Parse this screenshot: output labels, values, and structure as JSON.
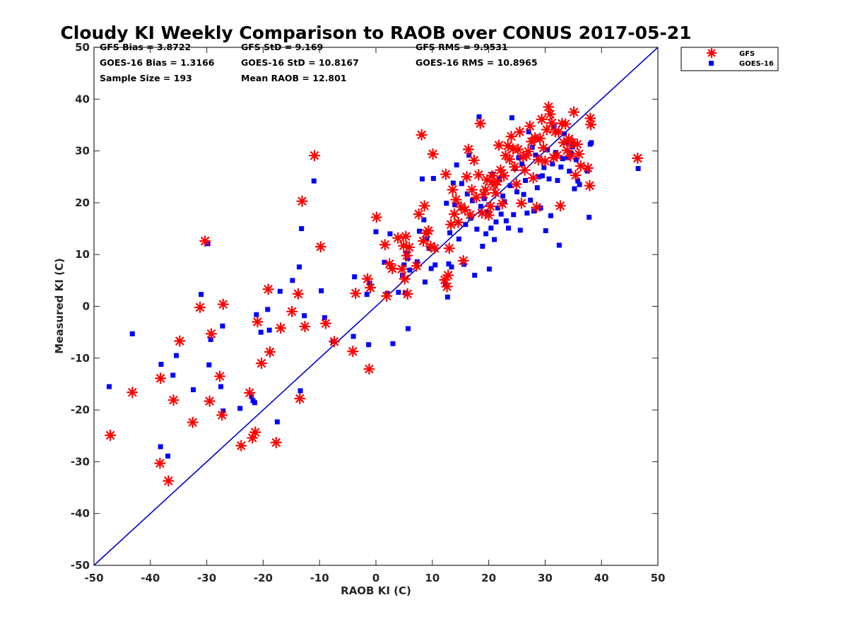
{
  "chart_data": {
    "type": "scatter",
    "title": "Cloudy KI Weekly Comparison to RAOB over CONUS 2017-05-21",
    "xlabel": "RAOB KI (C)",
    "ylabel": "Measured KI (C)",
    "xlim": [
      -50,
      50
    ],
    "ylim": [
      -50,
      50
    ],
    "xticks": [
      "-50",
      "-40",
      "-30",
      "-20",
      "-10",
      "0",
      "10",
      "20",
      "30",
      "40",
      "50"
    ],
    "yticks": [
      "50",
      "40",
      "30",
      "20",
      "10",
      "0",
      "-10",
      "-20",
      "-30",
      "-40",
      "-50"
    ],
    "grid": false,
    "legend_position": "outside-top-right",
    "reference_line": {
      "x": [
        -50,
        50
      ],
      "y": [
        -50,
        50
      ],
      "color": "#0000cc"
    },
    "stats": {
      "gfs_bias": "GFS Bias = 3.8722",
      "gfs_std": "GFS StD = 9.169",
      "gfs_rms": "GFS RMS = 9.9531",
      "goes_bias": "GOES-16 Bias = 1.3166",
      "goes_std": "GOES-16 StD = 10.8167",
      "goes_rms": "GOES-16 RMS = 10.8965",
      "sample_size": "Sample Size = 193",
      "mean_raob": "Mean RAOB = 12.801"
    },
    "series": [
      {
        "name": "GFS",
        "marker": "asterisk",
        "color": "#ff0000",
        "x": [
          -47.1,
          -43.2,
          -38.3,
          -38.2,
          -36.8,
          -35.9,
          -34.8,
          -32.5,
          -31.2,
          -30.3,
          -29.5,
          -29.2,
          -27.7,
          -27.3,
          -27.1,
          -23.9,
          -22.4,
          -21.9,
          -21.4,
          -21.0,
          -20.3,
          -19.1,
          -18.8,
          -17.7,
          -16.9,
          -14.9,
          -13.8,
          -13.5,
          -13.1,
          -12.6,
          -10.9,
          -9.8,
          -8.9,
          -7.4,
          -4.1,
          -3.6,
          -1.5,
          -1.2,
          -1.0,
          0.1,
          1.6,
          1.9,
          2.4,
          2.9,
          3.9,
          4.6,
          4.9,
          5.1,
          5.3,
          5.5,
          5.6,
          5.9,
          7.2,
          7.6,
          8.1,
          8.4,
          8.6,
          8.9,
          9.3,
          9.7,
          10.1,
          10.4,
          12.2,
          12.4,
          12.6,
          12.8,
          13.0,
          13.3,
          13.6,
          13.9,
          14.2,
          14.6,
          15.1,
          15.5,
          15.8,
          16.1,
          16.4,
          16.7,
          17.0,
          17.4,
          17.8,
          18.2,
          18.5,
          18.8,
          19.1,
          19.4,
          19.7,
          20.0,
          20.3,
          20.6,
          20.9,
          21.2,
          21.5,
          21.8,
          22.1,
          22.4,
          22.7,
          23.0,
          23.4,
          23.7,
          24.0,
          24.3,
          24.6,
          24.9,
          25.2,
          25.5,
          25.8,
          26.1,
          26.4,
          26.7,
          27.0,
          27.3,
          27.6,
          27.9,
          28.2,
          28.5,
          28.8,
          29.1,
          29.4,
          29.7,
          30.0,
          30.3,
          30.6,
          30.9,
          31.2,
          31.5,
          31.8,
          32.1,
          32.4,
          32.7,
          33.0,
          33.3,
          33.6,
          33.9,
          34.2,
          34.5,
          34.8,
          35.1,
          35.4,
          35.7,
          36.0,
          36.3,
          37.6,
          37.9,
          38.0,
          38.1,
          46.4
        ],
        "y": [
          -24.9,
          -16.6,
          -30.3,
          -13.9,
          -33.7,
          -18.1,
          -6.7,
          -22.4,
          -0.2,
          12.6,
          -18.3,
          -5.3,
          -13.5,
          -21.0,
          0.4,
          -26.9,
          -16.7,
          -25.4,
          -24.3,
          -3.0,
          -11.0,
          3.3,
          -8.8,
          -26.3,
          -4.2,
          -1.0,
          2.4,
          -17.8,
          20.3,
          -3.9,
          29.1,
          11.5,
          -3.3,
          -6.8,
          -8.7,
          2.5,
          5.3,
          -12.1,
          3.6,
          17.2,
          11.9,
          2.0,
          8.2,
          7.3,
          13.2,
          7.2,
          11.7,
          5.3,
          13.5,
          9.8,
          2.4,
          11.4,
          7.8,
          17.8,
          33.1,
          12.6,
          19.4,
          14.1,
          14.6,
          11.6,
          29.4,
          11.2,
          5.1,
          25.5,
          3.8,
          6.0,
          11.2,
          15.8,
          22.5,
          17.8,
          20.6,
          16.2,
          19.2,
          8.8,
          18.6,
          25.0,
          30.3,
          17.7,
          22.5,
          28.2,
          21.0,
          25.4,
          35.3,
          18.0,
          21.6,
          22.5,
          24.4,
          17.6,
          19.3,
          25.2,
          23.5,
          21.9,
          24.1,
          31.1,
          26.3,
          19.8,
          25.2,
          29.1,
          31.0,
          28.4,
          32.8,
          30.4,
          26.9,
          23.6,
          30.3,
          33.7,
          19.9,
          28.8,
          26.3,
          29.1,
          29.9,
          34.8,
          31.8,
          24.8,
          32.5,
          19.1,
          28.3,
          32.4,
          36.1,
          30.6,
          28.0,
          34.1,
          38.5,
          37.1,
          35.4,
          28.7,
          33.7,
          29.1,
          33.7,
          19.4,
          35.3,
          31.6,
          35.2,
          30.1,
          32.3,
          29.0,
          31.6,
          37.5,
          25.3,
          31.3,
          29.4,
          27.1,
          26.7,
          23.3,
          36.3,
          35.1,
          28.6
        ]
      },
      {
        "name": "GOES-16",
        "marker": "square",
        "color": "#0000ff",
        "x": [
          -47.3,
          -43.2,
          -38.2,
          -38.1,
          -36.9,
          -36.0,
          -35.4,
          -32.4,
          -31.0,
          -29.8,
          -29.6,
          -29.3,
          -27.5,
          -27.1,
          -27.2,
          -24.1,
          -22.1,
          -21.8,
          -21.5,
          -21.2,
          -20.4,
          -19.2,
          -18.9,
          -17.5,
          -17.0,
          -14.8,
          -13.6,
          -13.4,
          -13.2,
          -12.7,
          -11.0,
          -9.7,
          -9.1,
          -7.6,
          -4.0,
          -3.8,
          -1.6,
          -1.3,
          -1.1,
          0.0,
          1.5,
          2.0,
          2.5,
          3.0,
          4.0,
          4.7,
          5.0,
          5.2,
          5.4,
          5.6,
          5.7,
          6.0,
          7.3,
          7.7,
          8.2,
          8.5,
          8.7,
          9.0,
          9.4,
          9.8,
          10.2,
          10.5,
          12.3,
          12.5,
          12.7,
          12.9,
          13.1,
          13.4,
          13.7,
          14.0,
          14.3,
          14.7,
          15.2,
          15.6,
          15.9,
          16.2,
          16.5,
          16.8,
          17.1,
          17.5,
          17.9,
          18.3,
          18.6,
          18.9,
          19.2,
          19.5,
          19.8,
          20.1,
          20.4,
          20.7,
          21.0,
          21.3,
          21.6,
          21.9,
          22.2,
          22.5,
          22.8,
          23.1,
          23.5,
          23.8,
          24.1,
          24.4,
          24.7,
          25.0,
          25.3,
          25.6,
          25.9,
          26.2,
          26.5,
          26.8,
          27.1,
          27.4,
          27.7,
          28.0,
          28.3,
          28.6,
          28.9,
          29.2,
          29.5,
          29.8,
          30.1,
          30.4,
          30.7,
          31.0,
          31.3,
          31.6,
          31.9,
          32.2,
          32.5,
          32.8,
          33.1,
          33.4,
          33.7,
          34.0,
          34.3,
          34.6,
          34.9,
          35.2,
          35.5,
          35.8,
          36.1,
          37.5,
          37.8,
          38.0,
          38.2,
          46.5
        ],
        "y": [
          -15.5,
          -5.3,
          -27.1,
          -11.2,
          -28.9,
          -13.3,
          -9.5,
          -16.1,
          2.3,
          12.1,
          -11.3,
          -6.4,
          -15.5,
          -20.2,
          -3.8,
          -19.7,
          -17.4,
          -18.2,
          -18.6,
          -1.6,
          -5.0,
          -0.6,
          -4.6,
          -22.3,
          2.9,
          5.0,
          7.6,
          -16.3,
          15.0,
          -1.8,
          24.2,
          3.0,
          -2.2,
          -6.8,
          -5.8,
          5.7,
          2.3,
          -7.4,
          4.5,
          14.4,
          8.5,
          2.5,
          14.0,
          -7.2,
          2.7,
          6.0,
          8.0,
          2.6,
          10.2,
          9.2,
          -4.3,
          7.0,
          8.6,
          14.5,
          24.6,
          16.7,
          4.7,
          13.0,
          11.2,
          7.3,
          24.7,
          8.0,
          4.2,
          19.9,
          1.8,
          8.2,
          14.2,
          7.6,
          23.8,
          19.6,
          27.3,
          13.0,
          23.7,
          8.1,
          15.8,
          21.7,
          29.2,
          17.0,
          20.4,
          6.0,
          14.9,
          36.6,
          19.3,
          11.6,
          20.8,
          14.0,
          18.1,
          7.2,
          15.1,
          25.5,
          12.9,
          16.3,
          19.0,
          24.6,
          17.8,
          21.3,
          20.2,
          16.5,
          15.1,
          23.3,
          36.4,
          17.7,
          26.6,
          22.1,
          28.7,
          14.7,
          27.5,
          21.6,
          24.3,
          18.0,
          33.7,
          20.5,
          30.7,
          18.4,
          29.2,
          22.9,
          25.0,
          19.0,
          25.2,
          26.8,
          14.6,
          30.2,
          24.6,
          17.5,
          27.5,
          34.7,
          29.7,
          24.3,
          11.8,
          26.9,
          28.5,
          33.3,
          31.6,
          28.7,
          26.1,
          29.5,
          30.8,
          22.7,
          28.3,
          24.2,
          23.5,
          26.1,
          17.2,
          31.3,
          31.6,
          26.6
        ]
      }
    ]
  }
}
